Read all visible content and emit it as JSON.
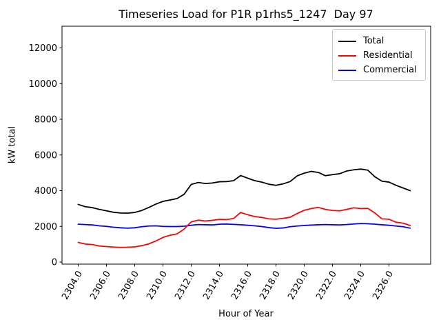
{
  "title": "Timeseries Load for P1R p1rhs5_1247  Day 97",
  "chart_data": {
    "type": "line",
    "title": "Timeseries Load for P1R p1rhs5_1247  Day 97",
    "xlabel": "Hour of Year",
    "ylabel": "kW total",
    "grid": false,
    "legend_position": "upper right",
    "ylim": [
      0,
      13200
    ],
    "xlim": [
      2302.8,
      2329.0
    ],
    "y_ticks": [
      0,
      2000,
      4000,
      6000,
      8000,
      10000,
      12000
    ],
    "x_ticks": [
      2304,
      2306,
      2308,
      2310,
      2312,
      2314,
      2316,
      2318,
      2320,
      2322,
      2324,
      2326
    ],
    "x_tick_labels": [
      "2304.0",
      "2306.0",
      "2308.0",
      "2310.0",
      "2312.0",
      "2314.0",
      "2316.0",
      "2318.0",
      "2320.0",
      "2322.0",
      "2324.0",
      "2326.0"
    ],
    "x": [
      2304.0,
      2304.5,
      2305.0,
      2305.5,
      2306.0,
      2306.5,
      2307.0,
      2307.5,
      2308.0,
      2308.5,
      2309.0,
      2309.5,
      2310.0,
      2310.5,
      2311.0,
      2311.5,
      2312.0,
      2312.5,
      2313.0,
      2313.5,
      2314.0,
      2314.5,
      2315.0,
      2315.5,
      2316.0,
      2316.5,
      2317.0,
      2317.5,
      2318.0,
      2318.5,
      2319.0,
      2319.5,
      2320.0,
      2320.5,
      2321.0,
      2321.5,
      2322.0,
      2322.5,
      2323.0,
      2323.5,
      2324.0,
      2324.5,
      2325.0,
      2325.5,
      2326.0,
      2326.5,
      2327.0,
      2327.5
    ],
    "series": [
      {
        "name": "Total",
        "color": "#000000",
        "values": [
          3230,
          3100,
          3050,
          2950,
          2870,
          2790,
          2750,
          2740,
          2780,
          2890,
          3060,
          3250,
          3400,
          3480,
          3560,
          3800,
          4350,
          4460,
          4400,
          4430,
          4500,
          4510,
          4560,
          4850,
          4700,
          4560,
          4480,
          4360,
          4300,
          4380,
          4510,
          4830,
          4980,
          5080,
          5020,
          4840,
          4900,
          4950,
          5100,
          5170,
          5210,
          5150,
          4780,
          4530,
          4480,
          4300,
          4150,
          4000
        ]
      },
      {
        "name": "Residential",
        "color": "#ff0000",
        "values": [
          1100,
          1010,
          980,
          900,
          870,
          840,
          820,
          830,
          850,
          920,
          1020,
          1180,
          1380,
          1500,
          1580,
          1850,
          2250,
          2350,
          2300,
          2340,
          2390,
          2380,
          2440,
          2780,
          2650,
          2550,
          2500,
          2420,
          2400,
          2450,
          2510,
          2720,
          2900,
          3000,
          3060,
          2950,
          2890,
          2870,
          2950,
          3040,
          3000,
          3010,
          2750,
          2420,
          2400,
          2230,
          2180,
          2050
        ]
      },
      {
        "name": "Commercial",
        "color": "#0000ff",
        "values": [
          2120,
          2100,
          2080,
          2030,
          2000,
          1950,
          1920,
          1900,
          1920,
          1980,
          2020,
          2030,
          2000,
          1990,
          1990,
          2010,
          2060,
          2100,
          2090,
          2080,
          2120,
          2130,
          2110,
          2090,
          2060,
          2030,
          1990,
          1930,
          1890,
          1910,
          1980,
          2020,
          2050,
          2070,
          2090,
          2100,
          2090,
          2080,
          2100,
          2130,
          2160,
          2150,
          2120,
          2090,
          2060,
          2020,
          1980,
          1900
        ]
      }
    ]
  }
}
